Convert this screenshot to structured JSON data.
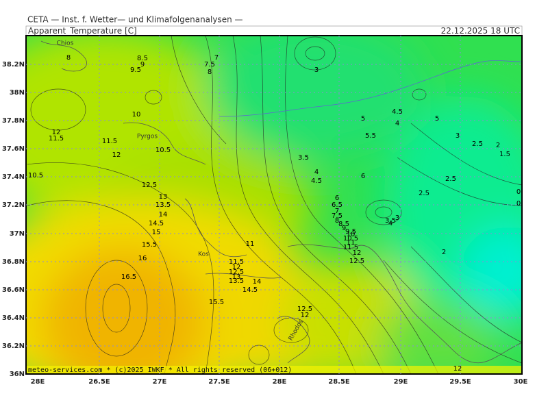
{
  "header": {
    "source": "CETA — Inst. f. Wetter— und Klimafolgenanalysen —",
    "title": "Apparent_Temperature [C]",
    "date": "22.12.2025 18 UTC"
  },
  "x_axis": {
    "labels": [
      "28E",
      "26.5E",
      "27E",
      "27.5E",
      "28E",
      "28.5E",
      "29E",
      "29.5E",
      "30E"
    ]
  },
  "y_axis": {
    "labels": [
      "38.2N",
      "38N",
      "37.8N",
      "37.6N",
      "37.4N",
      "37.2N",
      "37N",
      "36.8N",
      "36.6N",
      "36.4N",
      "36.2N",
      "36N"
    ]
  },
  "contour_labels": [
    8,
    8.5,
    9,
    9.5,
    7,
    7.5,
    8,
    10,
    12,
    11.5,
    11.5,
    12,
    10.5,
    10.5,
    12.5,
    13,
    13.5,
    14,
    14.5,
    15,
    15.5,
    16,
    16.5,
    11,
    11.5,
    12,
    12.5,
    13,
    13.5,
    14,
    14.5,
    15.5,
    12.5,
    12,
    3,
    5,
    4.5,
    4,
    5,
    3,
    2.5,
    2,
    1.5,
    5.5,
    3.5,
    4,
    4.5,
    6,
    2.5,
    2.5,
    6,
    6.5,
    7,
    7.5,
    8,
    8.5,
    9,
    9.5,
    10,
    10.5,
    11,
    11.5,
    12,
    12.5,
    3,
    3.5,
    4,
    2,
    12,
    0,
    0
  ],
  "places": [
    "Chios",
    "Pyrgos",
    "Kos",
    "Rhodos"
  ],
  "footer": "meteo-services.com * (c)2025 IWKF * All rights reserved (06+012)"
}
